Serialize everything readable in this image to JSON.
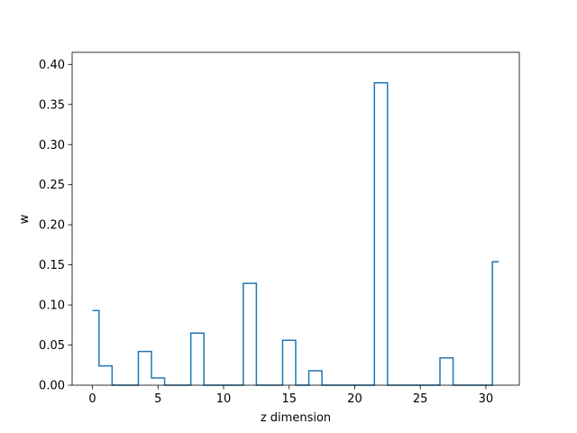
{
  "chart_data": {
    "type": "line",
    "drawstyle": "steps-mid",
    "xlabel": "z dimension",
    "ylabel": "w",
    "xlim": [
      -1.55,
      32.55
    ],
    "ylim": [
      0,
      0.415
    ],
    "xticks": [
      0,
      5,
      10,
      15,
      20,
      25,
      30
    ],
    "xtick_labels": [
      "0",
      "5",
      "10",
      "15",
      "20",
      "25",
      "30"
    ],
    "yticks": [
      0,
      0.05,
      0.1,
      0.15,
      0.2,
      0.25,
      0.3,
      0.35,
      0.4
    ],
    "ytick_labels": [
      "0.00",
      "0.05",
      "0.10",
      "0.15",
      "0.20",
      "0.25",
      "0.30",
      "0.35",
      "0.40"
    ],
    "grid": false,
    "color": "#1f77b4",
    "series": [
      {
        "x": [
          0,
          1,
          2,
          3,
          4,
          5,
          6,
          7,
          8,
          9,
          10,
          11,
          12,
          13,
          14,
          15,
          16,
          17,
          18,
          19,
          20,
          21,
          22,
          23,
          24,
          25,
          26,
          27,
          28,
          29,
          30,
          31
        ],
        "values": [
          0.093,
          0.024,
          0.0,
          0.0,
          0.042,
          0.009,
          0.0,
          0.0,
          0.065,
          0.0,
          0.0,
          0.0,
          0.127,
          0.0,
          0.0,
          0.056,
          0.0,
          0.018,
          0.0,
          0.0,
          0.0,
          0.0,
          0.377,
          0.0,
          0.0,
          0.0,
          0.0,
          0.034,
          0.0,
          0.0,
          0.0,
          0.154
        ]
      }
    ]
  }
}
